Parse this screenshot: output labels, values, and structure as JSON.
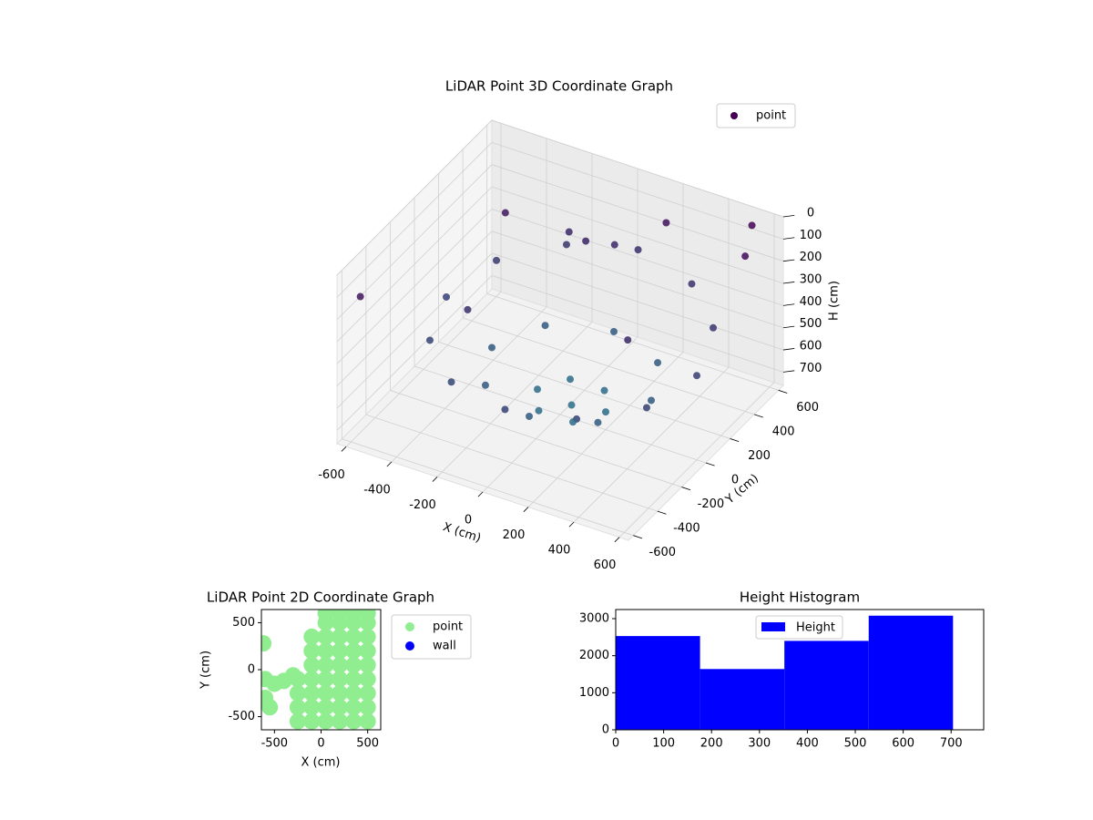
{
  "chart_data": [
    {
      "type": "scatter3d",
      "title": "LiDAR Point 3D Coordinate Graph",
      "xlabel": "X (cm)",
      "ylabel": "Y (cm)",
      "zlabel": "H (cm)",
      "xlim": [
        -640,
        640
      ],
      "ylim": [
        -640,
        640
      ],
      "zlim": [
        0,
        760
      ],
      "zinvert": true,
      "xticks": [
        -600,
        -400,
        -200,
        0,
        200,
        400,
        600
      ],
      "yticks": [
        -600,
        -400,
        -200,
        0,
        200,
        400,
        600
      ],
      "zticks": [
        0,
        100,
        200,
        300,
        400,
        500,
        600,
        700
      ],
      "cmap": [
        "#440154",
        "#2a788e"
      ],
      "legend": "upper right",
      "series": [
        {
          "name": "point",
          "x": [
            600,
            526,
            325,
            50,
            -225,
            -426,
            -500,
            -426,
            -225,
            50,
            325,
            526,
            400,
            297,
            50,
            -197,
            -300,
            -197,
            50,
            297,
            200,
            125,
            -25,
            -100,
            -25,
            125,
            50,
            -580,
            550,
            600,
            -400,
            200,
            350,
            -300,
            -200,
            -100,
            0
          ],
          "y": [
            0,
            275,
            476,
            550,
            476,
            275,
            0,
            -275,
            -476,
            -550,
            -476,
            -275,
            0,
            247,
            350,
            247,
            0,
            -247,
            -350,
            -247,
            0,
            130,
            130,
            0,
            -130,
            -130,
            0,
            -560,
            550,
            400,
            300,
            500,
            -100,
            -200,
            450,
            400,
            450
          ],
          "z": [
            380,
            340,
            320,
            300,
            330,
            360,
            400,
            420,
            430,
            420,
            410,
            400,
            560,
            560,
            560,
            560,
            560,
            560,
            560,
            560,
            680,
            680,
            680,
            680,
            680,
            680,
            700,
            120,
            20,
            60,
            150,
            100,
            250,
            280,
            250,
            230,
            240
          ]
        }
      ]
    },
    {
      "type": "scatter",
      "title": "LiDAR Point 2D Coordinate Graph",
      "xlabel": "X (cm)",
      "ylabel": "Y (cm)",
      "xlim": [
        -640,
        640
      ],
      "ylim": [
        -640,
        640
      ],
      "xticks": [
        -500,
        0,
        500
      ],
      "yticks": [
        -500,
        0,
        500
      ],
      "legend": "outside right",
      "series": [
        {
          "name": "point",
          "color": "#90ee90",
          "x": [
            -250,
            -250,
            -250,
            -250,
            -100,
            -100,
            -100,
            -100,
            -100,
            -100,
            -100,
            50,
            50,
            50,
            50,
            50,
            50,
            50,
            50,
            50,
            200,
            200,
            200,
            200,
            200,
            200,
            200,
            200,
            200,
            350,
            350,
            350,
            350,
            350,
            350,
            350,
            350,
            350,
            500,
            500,
            500,
            500,
            500,
            500,
            500,
            500,
            500,
            -620,
            -600,
            -500,
            -400,
            -300,
            -600,
            -550
          ],
          "y": [
            -550,
            -400,
            -250,
            -100,
            -550,
            -400,
            -250,
            -100,
            50,
            200,
            350,
            -550,
            -400,
            -250,
            -100,
            50,
            200,
            350,
            500,
            600,
            -550,
            -400,
            -250,
            -100,
            50,
            200,
            350,
            500,
            600,
            -550,
            -400,
            -250,
            -100,
            50,
            200,
            350,
            500,
            600,
            -550,
            -400,
            -250,
            -100,
            50,
            200,
            350,
            500,
            600,
            280,
            -100,
            -150,
            -120,
            -60,
            -300,
            -400
          ]
        },
        {
          "name": "wall",
          "color": "#0000ff",
          "x": [],
          "y": []
        }
      ]
    },
    {
      "type": "histogram",
      "title": "Height Histogram",
      "bins": [
        0,
        176,
        352,
        528,
        704
      ],
      "values": [
        2530,
        1640,
        2400,
        3080
      ],
      "color": "#0000ff",
      "name": "Height",
      "legend": "upper center",
      "xlim": [
        0,
        768
      ],
      "ylim": [
        0,
        3246
      ],
      "xticks": [
        0,
        100,
        200,
        300,
        400,
        500,
        600,
        700
      ],
      "yticks": [
        0,
        1000,
        2000,
        3000
      ]
    }
  ]
}
